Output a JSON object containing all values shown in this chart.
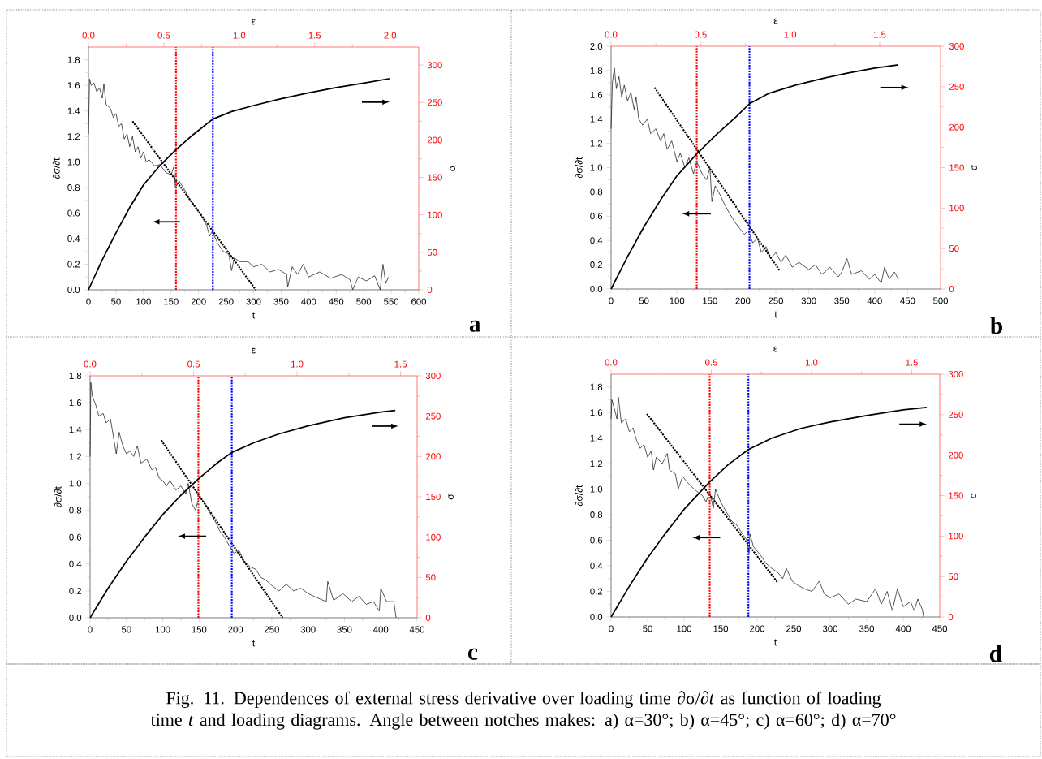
{
  "chart_data": [
    {
      "type": "line",
      "xlabel": "t",
      "ylabel": "∂σ/∂t",
      "y2label": "σ",
      "x2label": "ε",
      "xlim": [
        0,
        600
      ],
      "xticks": [
        0,
        50,
        100,
        150,
        200,
        250,
        300,
        350,
        400,
        450,
        500,
        550,
        600
      ],
      "ylim": [
        0,
        1.9
      ],
      "yticks": [
        {
          "value": 0,
          "label": "0.0"
        },
        0.2,
        0.4,
        0.6,
        0.8,
        {
          "value": 1,
          "label": "1.0"
        },
        1.2,
        1.4,
        1.6,
        1.8
      ],
      "y2lim": [
        0,
        324
      ],
      "y2ticks": [
        0,
        50,
        100,
        150,
        200,
        250,
        300
      ],
      "x2lim": [
        0,
        2.19
      ],
      "x2ticks": [
        {
          "value": 0,
          "label": "0.0"
        },
        {
          "value": 0.5,
          "label": "0.5"
        },
        {
          "value": 1,
          "label": "1.0"
        },
        {
          "value": 1.5,
          "label": "1.5"
        },
        {
          "value": 2,
          "label": "2.0"
        }
      ],
      "series": [
        {
          "color": "#000000",
          "x": [
            0,
            2,
            5,
            10,
            15,
            20,
            25,
            28,
            32,
            40,
            45,
            50,
            55,
            60,
            65,
            70,
            75,
            80,
            85,
            90,
            95,
            100,
            105,
            110,
            120,
            130,
            140,
            150,
            155,
            158,
            165,
            175,
            185,
            195,
            205,
            215,
            220,
            225,
            235,
            245,
            255,
            260,
            265,
            275,
            290,
            300,
            315,
            330,
            345,
            360,
            362,
            370,
            380,
            390,
            400,
            420,
            440,
            460,
            475,
            480,
            490,
            505,
            520,
            530,
            535,
            540,
            545
          ],
          "values": [
            1.22,
            1.65,
            1.6,
            1.62,
            1.55,
            1.58,
            1.5,
            1.61,
            1.45,
            1.42,
            1.35,
            1.38,
            1.28,
            1.3,
            1.18,
            1.22,
            1.12,
            1.2,
            1.08,
            1.12,
            1.03,
            1.08,
            1.0,
            1.02,
            0.97,
            0.98,
            0.92,
            0.9,
            0.96,
            0.8,
            0.85,
            0.78,
            0.7,
            0.65,
            0.58,
            0.5,
            0.42,
            0.46,
            0.36,
            0.3,
            0.28,
            0.15,
            0.25,
            0.22,
            0.22,
            0.18,
            0.2,
            0.14,
            0.16,
            0.12,
            0.02,
            0.18,
            0.12,
            0.2,
            0.1,
            0.14,
            0.09,
            0.12,
            0.08,
            0.0,
            0.1,
            0.07,
            0.11,
            0.0,
            0.2,
            0.05,
            0.1
          ]
        },
        {
          "color": "#000000",
          "axis": "y2",
          "x": [
            0,
            25,
            50,
            75,
            100,
            130,
            159,
            190,
            226,
            260,
            300,
            350,
            400,
            450,
            500,
            548
          ],
          "values": [
            0,
            40,
            76,
            110,
            140,
            166,
            187,
            207,
            228,
            238,
            246,
            255,
            263,
            270,
            276,
            282
          ]
        },
        {
          "color": "#000000",
          "line_style": "dotted",
          "x": [
            80,
            304
          ],
          "values": [
            1.32,
            0
          ]
        }
      ],
      "ref_lines": [
        {
          "axis": "x",
          "value": 159,
          "color": "#ff0000",
          "line_style": "dotted"
        },
        {
          "axis": "x",
          "value": 226,
          "color": "#0000ff",
          "line_style": "dotted"
        }
      ],
      "annotations": [
        "a"
      ]
    },
    {
      "type": "line",
      "xlabel": "t",
      "ylabel": "∂σ/∂t",
      "y2label": "σ",
      "x2label": "ε",
      "xlim": [
        0,
        500
      ],
      "xticks": [
        0,
        50,
        100,
        150,
        200,
        250,
        300,
        350,
        400,
        450,
        500
      ],
      "ylim": [
        0,
        2
      ],
      "yticks": [
        {
          "value": 0,
          "label": "0.0"
        },
        0.2,
        0.4,
        0.6,
        0.8,
        {
          "value": 1,
          "label": "1.0"
        },
        1.2,
        1.4,
        1.6,
        1.8,
        {
          "value": 2,
          "label": "2.0"
        }
      ],
      "y2lim": [
        0,
        300
      ],
      "y2ticks": [
        0,
        50,
        100,
        150,
        200,
        250,
        300
      ],
      "x2lim": [
        0,
        1.84
      ],
      "x2ticks": [
        {
          "value": 0,
          "label": "0.0"
        },
        {
          "value": 0.5,
          "label": "0.5"
        },
        {
          "value": 1,
          "label": "1.0"
        },
        {
          "value": 1.5,
          "label": "1.5"
        }
      ],
      "series": [
        {
          "color": "#000000",
          "x": [
            0,
            2,
            5,
            8,
            12,
            16,
            20,
            25,
            30,
            35,
            38,
            42,
            48,
            55,
            60,
            68,
            75,
            80,
            85,
            92,
            100,
            105,
            112,
            118,
            125,
            130,
            138,
            145,
            150,
            153,
            158,
            165,
            172,
            180,
            188,
            195,
            202,
            208,
            215,
            222,
            228,
            235,
            242,
            250,
            258,
            265,
            275,
            285,
            300,
            310,
            320,
            332,
            345,
            350,
            358,
            365,
            380,
            392,
            400,
            410,
            415,
            422,
            430,
            436
          ],
          "values": [
            1.32,
            1.7,
            1.82,
            1.65,
            1.75,
            1.58,
            1.68,
            1.55,
            1.62,
            1.48,
            1.58,
            1.4,
            1.35,
            1.4,
            1.28,
            1.32,
            1.22,
            1.28,
            1.15,
            1.22,
            1.05,
            1.12,
            1.0,
            1.08,
            0.95,
            1.05,
            0.95,
            0.9,
            1.0,
            0.72,
            0.85,
            0.78,
            0.7,
            0.62,
            0.55,
            0.5,
            0.45,
            0.48,
            0.38,
            0.42,
            0.3,
            0.35,
            0.25,
            0.3,
            0.22,
            0.28,
            0.18,
            0.22,
            0.16,
            0.2,
            0.12,
            0.18,
            0.1,
            0.14,
            0.25,
            0.12,
            0.15,
            0.08,
            0.12,
            0.05,
            0.18,
            0.08,
            0.14,
            0.08
          ]
        },
        {
          "color": "#000000",
          "axis": "y2",
          "x": [
            0,
            25,
            50,
            75,
            100,
            130,
            160,
            190,
            210,
            240,
            280,
            320,
            360,
            400,
            436
          ],
          "values": [
            0,
            40,
            77,
            110,
            140,
            167,
            191,
            213,
            229,
            242,
            252,
            260,
            267,
            273,
            277
          ]
        },
        {
          "color": "#000000",
          "line_style": "dotted",
          "x": [
            66,
            256
          ],
          "values": [
            1.66,
            0.15
          ]
        }
      ],
      "ref_lines": [
        {
          "axis": "x",
          "value": 130,
          "color": "#ff0000",
          "line_style": "dotted"
        },
        {
          "axis": "x",
          "value": 210,
          "color": "#0000ff",
          "line_style": "dotted"
        }
      ],
      "annotations": [
        "b"
      ]
    },
    {
      "type": "line",
      "xlabel": "t",
      "ylabel": "∂σ/∂t",
      "y2label": "σ",
      "x2label": "ε",
      "xlim": [
        0,
        450
      ],
      "xticks": [
        0,
        50,
        100,
        150,
        200,
        250,
        300,
        350,
        400,
        450
      ],
      "ylim": [
        0,
        1.8
      ],
      "yticks": [
        {
          "value": 0,
          "label": "0.0"
        },
        0.2,
        0.4,
        0.6,
        0.8,
        {
          "value": 1,
          "label": "1.0"
        },
        1.2,
        1.4,
        1.6,
        1.8
      ],
      "y2lim": [
        0,
        300
      ],
      "y2ticks": [
        0,
        50,
        100,
        150,
        200,
        250,
        300
      ],
      "x2lim": [
        0,
        1.58
      ],
      "x2ticks": [
        {
          "value": 0,
          "label": "0.0"
        },
        {
          "value": 0.5,
          "label": "0.5"
        },
        {
          "value": 1,
          "label": "1.0"
        },
        {
          "value": 1.5,
          "label": "1.5"
        }
      ],
      "series": [
        {
          "color": "#000000",
          "x": [
            0,
            1,
            3,
            8,
            12,
            18,
            22,
            28,
            32,
            36,
            40,
            45,
            50,
            55,
            60,
            65,
            70,
            78,
            85,
            90,
            95,
            100,
            105,
            110,
            118,
            125,
            132,
            135,
            140,
            145,
            150,
            158,
            165,
            172,
            178,
            185,
            190,
            198,
            205,
            212,
            220,
            228,
            235,
            242,
            250,
            260,
            270,
            280,
            290,
            300,
            312,
            325,
            327,
            335,
            348,
            360,
            370,
            380,
            390,
            398,
            400,
            408,
            418,
            421
          ],
          "values": [
            1.2,
            1.75,
            1.65,
            1.58,
            1.5,
            1.52,
            1.45,
            1.48,
            1.35,
            1.22,
            1.38,
            1.28,
            1.22,
            1.24,
            1.2,
            1.28,
            1.15,
            1.18,
            1.1,
            1.12,
            1.04,
            1.02,
            0.98,
            1.02,
            0.95,
            0.98,
            0.92,
            1.0,
            0.85,
            0.8,
            0.9,
            0.85,
            0.78,
            0.72,
            0.65,
            0.6,
            0.55,
            0.48,
            0.5,
            0.42,
            0.38,
            0.36,
            0.3,
            0.28,
            0.24,
            0.2,
            0.25,
            0.2,
            0.22,
            0.18,
            0.15,
            0.12,
            0.27,
            0.13,
            0.18,
            0.12,
            0.16,
            0.1,
            0.12,
            0.05,
            0.22,
            0.12,
            0.12,
            0.0
          ]
        },
        {
          "color": "#000000",
          "axis": "y2",
          "x": [
            0,
            25,
            50,
            75,
            100,
            125,
            150,
            175,
            195,
            225,
            260,
            300,
            350,
            400,
            420
          ],
          "values": [
            0,
            37,
            70,
            100,
            128,
            152,
            173,
            192,
            205,
            217,
            228,
            238,
            248,
            255,
            257
          ]
        },
        {
          "color": "#000000",
          "line_style": "dotted",
          "x": [
            98,
            265
          ],
          "values": [
            1.32,
            0
          ]
        }
      ],
      "ref_lines": [
        {
          "axis": "x",
          "value": 149,
          "color": "#ff0000",
          "line_style": "dotted"
        },
        {
          "axis": "x",
          "value": 195,
          "color": "#0000ff",
          "line_style": "dotted"
        }
      ],
      "annotations": [
        "c"
      ]
    },
    {
      "type": "line",
      "xlabel": "t",
      "ylabel": "∂σ/∂t",
      "y2label": "σ",
      "x2label": "ε",
      "xlim": [
        0,
        450
      ],
      "xticks": [
        0,
        50,
        100,
        150,
        200,
        250,
        300,
        350,
        400,
        450
      ],
      "ylim": [
        0,
        1.9
      ],
      "yticks": [
        {
          "value": 0,
          "label": "0.0"
        },
        0.2,
        0.4,
        0.6,
        0.8,
        {
          "value": 1,
          "label": "1.0"
        },
        1.2,
        1.4,
        1.6,
        1.8
      ],
      "y2lim": [
        0,
        300
      ],
      "y2ticks": [
        0,
        50,
        100,
        150,
        200,
        250,
        300
      ],
      "x2lim": [
        0,
        1.64
      ],
      "x2ticks": [
        {
          "value": 0,
          "label": "0.0"
        },
        {
          "value": 0.5,
          "label": "0.5"
        },
        {
          "value": 1,
          "label": "1.0"
        },
        {
          "value": 1.5,
          "label": "1.5"
        }
      ],
      "series": [
        {
          "color": "#000000",
          "x": [
            0,
            1,
            5,
            8,
            10,
            14,
            20,
            25,
            30,
            35,
            40,
            45,
            50,
            55,
            58,
            62,
            70,
            77,
            80,
            88,
            92,
            98,
            105,
            110,
            118,
            125,
            130,
            135,
            140,
            143,
            150,
            158,
            165,
            172,
            180,
            186,
            189,
            190,
            195,
            205,
            212,
            220,
            228,
            235,
            240,
            248,
            255,
            265,
            275,
            285,
            292,
            300,
            312,
            325,
            335,
            350,
            362,
            370,
            378,
            385,
            392,
            400,
            410,
            415,
            420,
            426,
            428
          ],
          "values": [
            1.55,
            1.7,
            1.62,
            1.55,
            1.72,
            1.52,
            1.55,
            1.45,
            1.48,
            1.38,
            1.32,
            1.35,
            1.25,
            1.3,
            1.15,
            1.25,
            1.2,
            1.28,
            1.15,
            1.12,
            1.0,
            1.1,
            1.05,
            1.02,
            0.98,
            0.95,
            0.9,
            0.98,
            0.85,
            1.0,
            0.9,
            0.82,
            0.75,
            0.72,
            0.65,
            0.6,
            0.5,
            0.65,
            0.55,
            0.48,
            0.42,
            0.38,
            0.35,
            0.3,
            0.38,
            0.28,
            0.25,
            0.22,
            0.2,
            0.28,
            0.18,
            0.15,
            0.18,
            0.1,
            0.14,
            0.12,
            0.22,
            0.1,
            0.2,
            0.05,
            0.22,
            0.08,
            0.12,
            0.05,
            0.14,
            0.06,
            0.0
          ]
        },
        {
          "color": "#000000",
          "axis": "y2",
          "x": [
            0,
            25,
            50,
            75,
            100,
            135,
            160,
            188,
            220,
            260,
            300,
            350,
            400,
            432
          ],
          "values": [
            0,
            38,
            73,
            104,
            133,
            167,
            188,
            207,
            221,
            233,
            241,
            249,
            256,
            259
          ]
        },
        {
          "color": "#000000",
          "line_style": "dotted",
          "x": [
            49,
            228
          ],
          "values": [
            1.59,
            0.27
          ]
        }
      ],
      "ref_lines": [
        {
          "axis": "x",
          "value": 135,
          "color": "#ff0000",
          "line_style": "dotted"
        },
        {
          "axis": "x",
          "value": 188,
          "color": "#0000ff",
          "line_style": "dotted"
        }
      ],
      "annotations": [
        "d",
        "Fig. 11. Dependences of external stress derivative over loading time ∂σ/∂*t* as function of loading time *t* and loading diagrams. Angle between notches makes: a) α=30°; b) α=45°; c) α=60°; d) α=70°"
      ]
    }
  ]
}
